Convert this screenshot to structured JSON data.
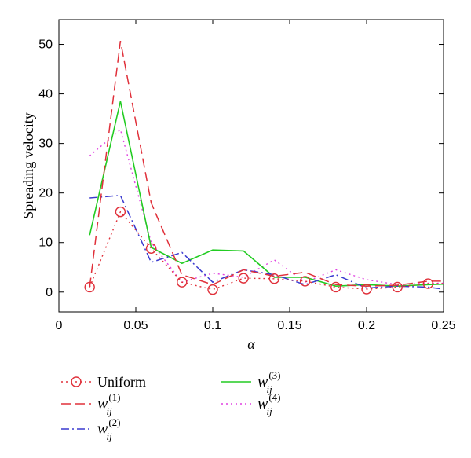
{
  "chart_data": {
    "type": "line",
    "xlabel": "α",
    "ylabel": "Spreading velocity",
    "xlim": [
      0,
      0.25
    ],
    "ylim": [
      -4,
      55
    ],
    "xticks": [
      0,
      0.05,
      0.1,
      0.15,
      0.2,
      0.25
    ],
    "xtick_labels": [
      "0",
      "0.05",
      "0.1",
      "0.15",
      "0.2",
      "0.25"
    ],
    "yticks": [
      0,
      10,
      20,
      30,
      40,
      50
    ],
    "ytick_labels": [
      "0",
      "10",
      "20",
      "30",
      "40",
      "50"
    ],
    "grid": false,
    "legend_position": "bottom",
    "x": [
      0.02,
      0.04,
      0.06,
      0.08,
      0.1,
      0.12,
      0.14,
      0.16,
      0.18,
      0.2,
      0.22,
      0.24,
      0.25
    ],
    "series": [
      {
        "name": "Uniform",
        "color": "#e0303a",
        "style": "dotted-circle",
        "values": [
          1,
          16.2,
          8.8,
          2,
          0.5,
          2.8,
          2.7,
          2.2,
          1,
          0.6,
          1,
          1.7,
          1.7
        ]
      },
      {
        "name": "w_ij^(1)",
        "color": "#e0303a",
        "style": "dashed",
        "values": [
          1,
          50.7,
          18,
          3.5,
          1.5,
          4.5,
          3.2,
          4,
          1.5,
          1.2,
          1.4,
          2.2,
          2.2
        ]
      },
      {
        "name": "w_ij^(2)",
        "color": "#3a3acf",
        "style": "dashdot",
        "values": [
          19,
          19.5,
          6,
          8,
          2,
          4.5,
          3.5,
          1.5,
          3.5,
          0.8,
          1.2,
          1,
          0.6
        ]
      },
      {
        "name": "w_ij^(3)",
        "color": "#22cc22",
        "style": "solid",
        "values": [
          11.5,
          38.5,
          9,
          5.8,
          8.5,
          8.3,
          3,
          3,
          1.2,
          1.5,
          1.2,
          1.5,
          1.6
        ]
      },
      {
        "name": "w_ij^(4)",
        "color": "#e040e0",
        "style": "dotted",
        "values": [
          27.5,
          32.8,
          10,
          2,
          3.8,
          3,
          6.5,
          2,
          4.5,
          2.5,
          1.5,
          1.8,
          1.8
        ]
      }
    ],
    "legend": [
      {
        "base": "Uniform",
        "sup": "",
        "sub": ""
      },
      {
        "base": "w",
        "sup": "(1)",
        "sub": "ij"
      },
      {
        "base": "w",
        "sup": "(2)",
        "sub": "ij"
      },
      {
        "base": "w",
        "sup": "(3)",
        "sub": "ij"
      },
      {
        "base": "w",
        "sup": "(4)",
        "sub": "ij"
      }
    ]
  }
}
